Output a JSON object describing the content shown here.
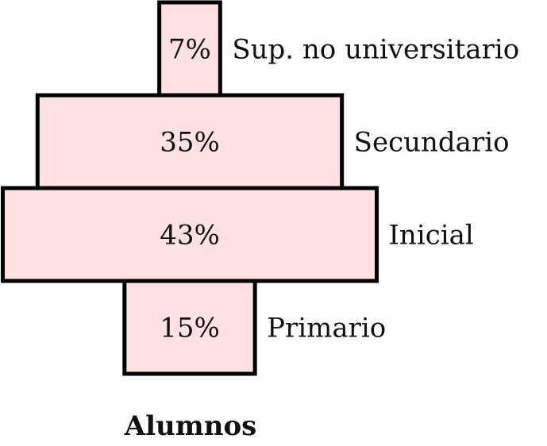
{
  "chart_data": {
    "type": "bar",
    "orientation": "horizontal-centered",
    "title": "Alumnos",
    "categories": [
      "Sup. no universitario",
      "Secundario",
      "Inicial",
      "Primario"
    ],
    "values": [
      7,
      35,
      43,
      15
    ],
    "value_labels": [
      "7%",
      "35%",
      "43%",
      "15%"
    ],
    "unit": "%",
    "fill_color": "#ffe1e4",
    "stroke_color": "#000000"
  }
}
